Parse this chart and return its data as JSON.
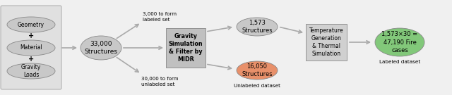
{
  "bg_color": "#eeeeee",
  "ellipse_gray": "#c8c8c8",
  "ellipse_orange": "#e8906a",
  "ellipse_green": "#82c87a",
  "rect_gray": "#c0c0c0",
  "rect_light": "#d0d0d0",
  "arrow_color": "#aaaaaa",
  "input_labels": [
    "Geometry",
    "Material",
    "Gravity\nLoads"
  ],
  "main_ellipse_text": "33,000\nStructures",
  "label_top": "3,000 to form\nlabeled set",
  "label_bottom": "30,000 to form\nunlabeled set",
  "box1_text": "Gravity\nSimulation\n& Filter by\nMIDR",
  "ellipse_top_text": "1,573\nStructures",
  "ellipse_bottom_text": "16,050\nStructures",
  "box2_text": "Temperature\nGeneration\n& Thermal\nSimulation",
  "final_ellipse_text": "1,573×30 =\n47,190 Fire\ncases",
  "label_final": "Labeled dataset",
  "label_unlabeled": "Unlabeled dataset"
}
